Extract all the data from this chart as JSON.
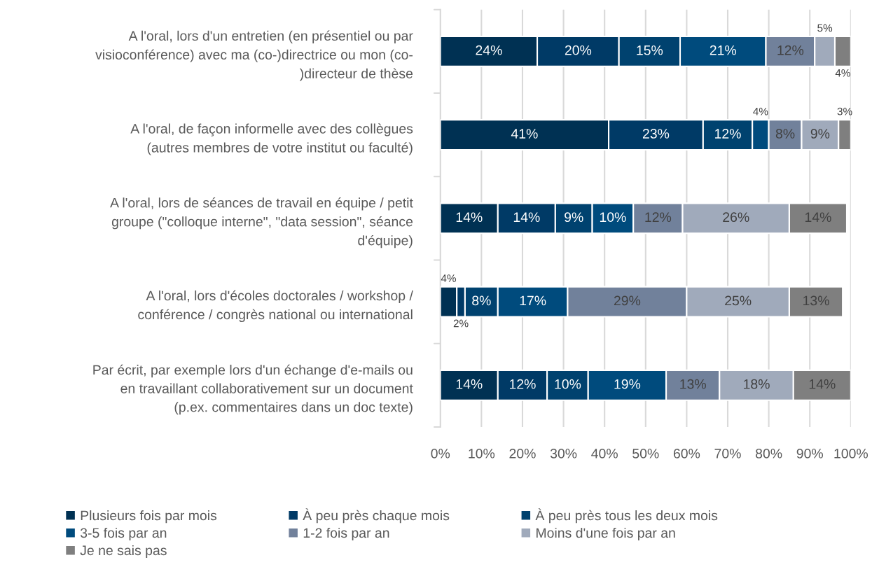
{
  "chart_data": {
    "type": "bar",
    "orientation": "horizontal",
    "stacked": true,
    "categories": [
      "A l'oral, lors d'un entretien (en présentiel ou par\nvisioconférence) avec ma (co-)directrice ou mon (co-\n)directeur de thèse",
      "A l'oral, de façon informelle avec des collègues\n(autres membres de votre institut ou faculté)",
      "A l'oral, lors de séances de travail en équipe / petit\ngroupe (\"colloque interne\", \"data session\", séance\nd'équipe)",
      "A l'oral, lors d'écoles doctorales / workshop /\nconférence / congrès national ou international",
      "Par écrit, par exemple lors d'un échange d'e-mails ou\nen travaillant collaborativement sur un document\n(p.ex. commentaires dans un doc texte)"
    ],
    "series": [
      {
        "name": "Plusieurs fois par mois",
        "color": "#003153",
        "values": [
          23.6,
          41,
          14,
          4,
          14
        ],
        "value_labels": [
          "24%",
          "41%",
          "14%",
          "4%",
          "14%"
        ]
      },
      {
        "name": "À peu près chaque mois",
        "color": "#003a66",
        "values": [
          19.9,
          23,
          14,
          2,
          12
        ],
        "value_labels": [
          "20%",
          "23%",
          "14%",
          "2%",
          "12%"
        ]
      },
      {
        "name": "À peu près tous les deux mois",
        "color": "#00426f",
        "values": [
          14.9,
          12,
          9,
          8,
          10
        ],
        "value_labels": [
          "15%",
          "12%",
          "9%",
          "8%",
          "10%"
        ]
      },
      {
        "name": "3-5 fois par an",
        "color": "#004b7d",
        "values": [
          20.9,
          4,
          10,
          17,
          19
        ],
        "value_labels": [
          "21%",
          "4%",
          "10%",
          "17%",
          "19%"
        ]
      },
      {
        "name": "1-2 fois par an",
        "color": "#71819b",
        "values": [
          11.9,
          8,
          12,
          29,
          13
        ],
        "value_labels": [
          "12%",
          "8%",
          "12%",
          "29%",
          "13%"
        ]
      },
      {
        "name": "Moins d'une fois par an",
        "color": "#a0aabb",
        "values": [
          4.9,
          9,
          26,
          25,
          18
        ],
        "value_labels": [
          "5%",
          "9%",
          "26%",
          "25%",
          "18%"
        ]
      },
      {
        "name": "Je ne sais pas",
        "color": "#7f7f7f",
        "values": [
          3.9,
          3,
          14,
          13,
          14
        ],
        "value_labels": [
          "4%",
          "3%",
          "14%",
          "13%",
          "14%"
        ]
      }
    ],
    "xlim": [
      0,
      100
    ],
    "xticks": [
      {
        "value": 0,
        "label": "0%"
      },
      {
        "value": 10,
        "label": "10%"
      },
      {
        "value": 20,
        "label": "20%"
      },
      {
        "value": 30,
        "label": "30%"
      },
      {
        "value": 40,
        "label": "40%"
      },
      {
        "value": 50,
        "label": "50%"
      },
      {
        "value": 60,
        "label": "60%"
      },
      {
        "value": 70,
        "label": "70%"
      },
      {
        "value": 80,
        "label": "80%"
      },
      {
        "value": 90,
        "label": "90%"
      },
      {
        "value": 100,
        "label": "100%"
      }
    ],
    "grid": "x",
    "legend": "bottom"
  }
}
